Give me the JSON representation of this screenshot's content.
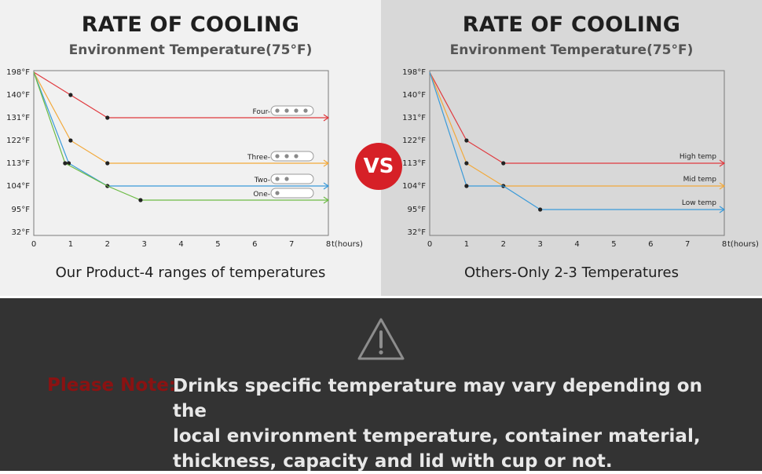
{
  "chart_data": [
    {
      "type": "line",
      "title": "RATE OF COOLING",
      "subtitle": "Environment Temperature(75°F)",
      "caption": "Our Product-4 ranges of temperatures",
      "xlabel": "t(hours)",
      "x_ticks": [
        "0",
        "1",
        "2",
        "3",
        "4",
        "5",
        "6",
        "7",
        "8"
      ],
      "y_ticks": [
        "198°F",
        "140°F",
        "131°F",
        "122°F",
        "113°F",
        "104°F",
        "95°F",
        "32°F"
      ],
      "xlim": [
        0,
        8
      ],
      "grid": false,
      "series": [
        {
          "name": "Four",
          "dots": 4,
          "color": "#e0393e",
          "points": [
            [
              0,
              "198°F"
            ],
            [
              1,
              "140°F"
            ],
            [
              2,
              "131°F"
            ],
            [
              8,
              "131°F"
            ]
          ],
          "markers": [
            1,
            2
          ]
        },
        {
          "name": "Three",
          "dots": 3,
          "color": "#f2a93b",
          "points": [
            [
              0,
              "198°F"
            ],
            [
              1,
              "122°F"
            ],
            [
              2,
              "113°F"
            ],
            [
              8,
              "113°F"
            ]
          ],
          "markers": [
            1,
            2
          ]
        },
        {
          "name": "Two",
          "dots": 2,
          "color": "#3a9ad9",
          "points": [
            [
              0,
              "198°F"
            ],
            [
              0.95,
              "113°F"
            ],
            [
              2,
              "104°F"
            ],
            [
              8,
              "104°F"
            ]
          ],
          "markers": [
            0.95,
            2
          ]
        },
        {
          "name": "One",
          "dots": 1,
          "color": "#6cbb45",
          "points": [
            [
              0,
              "198°F"
            ],
            [
              0.85,
              "113°F"
            ],
            [
              2,
              "104°F"
            ],
            [
              2.9,
              "97°F"
            ],
            [
              8,
              "97°F"
            ]
          ],
          "markers": [
            0.85,
            2.9
          ]
        }
      ]
    },
    {
      "type": "line",
      "title": "RATE OF COOLING",
      "subtitle": "Environment Temperature(75°F)",
      "caption": "Others-Only 2-3 Temperatures",
      "xlabel": "t(hours)",
      "x_ticks": [
        "0",
        "1",
        "2",
        "3",
        "4",
        "5",
        "6",
        "7",
        "8"
      ],
      "y_ticks": [
        "198°F",
        "140°F",
        "131°F",
        "122°F",
        "113°F",
        "104°F",
        "95°F",
        "32°F"
      ],
      "xlim": [
        0,
        8
      ],
      "grid": false,
      "series": [
        {
          "name": "High temp",
          "color": "#e0393e",
          "points": [
            [
              0,
              "198°F"
            ],
            [
              1,
              "122°F"
            ],
            [
              2,
              "113°F"
            ],
            [
              8,
              "113°F"
            ]
          ],
          "markers": [
            1,
            2
          ]
        },
        {
          "name": "Mid temp",
          "color": "#f2a93b",
          "points": [
            [
              0,
              "198°F"
            ],
            [
              1,
              "113°F"
            ],
            [
              2,
              "104°F"
            ],
            [
              8,
              "104°F"
            ]
          ],
          "markers": [
            1,
            2
          ]
        },
        {
          "name": "Low temp",
          "color": "#3a9ad9",
          "points": [
            [
              0,
              "198°F"
            ],
            [
              1,
              "104°F"
            ],
            [
              2,
              "104°F"
            ],
            [
              3,
              "95°F"
            ],
            [
              8,
              "95°F"
            ]
          ],
          "markers": [
            1,
            3
          ]
        }
      ]
    }
  ],
  "vs_label": "VS",
  "note": {
    "prefix": "Please Note:",
    "text": "Drinks specific temperature may vary depending on the\nlocal environment temperature, container material,\nthickness, capacity and lid with cup or not.",
    "icon": "warning-triangle-icon"
  }
}
